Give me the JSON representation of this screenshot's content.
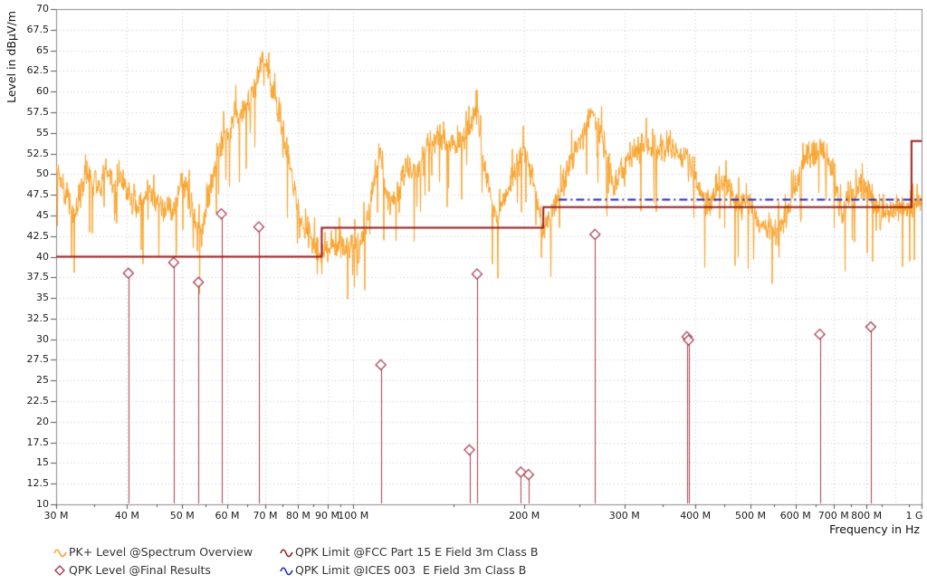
{
  "axis": {
    "y_title": "Level in dBµV/m",
    "x_title": "Frequency in Hz"
  },
  "legend": {
    "items": [
      {
        "label": "PK+ Level @Spectrum Overview",
        "icon": "orange-squiggle",
        "color": "#F9A228"
      },
      {
        "label": "QPK Level @Final Results",
        "icon": "open-diamond",
        "color": "#A03043"
      },
      {
        "label": "QPK Limit @FCC Part 15 E Field 3m Class B",
        "icon": "red-squiggle",
        "color": "#981C1C"
      },
      {
        "label": "QPK Limit @ICES 003  E Field 3m Class B",
        "icon": "blue-squiggle",
        "color": "#2323C0"
      }
    ]
  },
  "chart_data": {
    "type": "line",
    "title": "",
    "xlabel": "Frequency in Hz",
    "ylabel": "Level in dBµV/m",
    "x_scale": "log",
    "x_range_mhz": [
      30,
      1000
    ],
    "ylim": [
      10,
      70
    ],
    "grid": true,
    "legend_position": "bottom",
    "y_ticks": [
      "70",
      "67.5",
      "65",
      "62.5",
      "60",
      "57.5",
      "55",
      "52.5",
      "50",
      "47.5",
      "45",
      "42.5",
      "40",
      "37.5",
      "35",
      "32.5",
      "30",
      "27.5",
      "25",
      "22.5",
      "20",
      "17.5",
      "15",
      "12.5",
      "10"
    ],
    "y_tick_values": [
      70,
      67.5,
      65,
      62.5,
      60,
      57.5,
      55,
      52.5,
      50,
      47.5,
      45,
      42.5,
      40,
      37.5,
      35,
      32.5,
      30,
      27.5,
      25,
      22.5,
      20,
      17.5,
      15,
      12.5,
      10
    ],
    "x_major_ticks": [
      {
        "mhz": 30,
        "label": "30 M"
      },
      {
        "mhz": 40,
        "label": "40 M"
      },
      {
        "mhz": 50,
        "label": "50 M"
      },
      {
        "mhz": 60,
        "label": "60 M"
      },
      {
        "mhz": 70,
        "label": "70 M"
      },
      {
        "mhz": 80,
        "label": "80 M"
      },
      {
        "mhz": 90,
        "label": "90 M"
      },
      {
        "mhz": 100,
        "label": "100 M"
      },
      {
        "mhz": 200,
        "label": "200 M"
      },
      {
        "mhz": 300,
        "label": "300 M"
      },
      {
        "mhz": 400,
        "label": "400 M"
      },
      {
        "mhz": 500,
        "label": "500 M"
      },
      {
        "mhz": 600,
        "label": "600 M"
      },
      {
        "mhz": 700,
        "label": "700 M"
      },
      {
        "mhz": 800,
        "label": "800 M"
      },
      {
        "mhz": 1000,
        "label": "1 G"
      }
    ],
    "x_minor_ticks_mhz": [
      35,
      45,
      55,
      65,
      75,
      85,
      95,
      150,
      250,
      350,
      450,
      550,
      650,
      750,
      850,
      950
    ],
    "grid_vertical_mhz": [
      40,
      50,
      60,
      70,
      80,
      90,
      100,
      200,
      300,
      400,
      500,
      600,
      700,
      800,
      900
    ],
    "series": [
      {
        "name": "PK+ Level @Spectrum Overview",
        "kind": "noisy-spectrum",
        "color": "#F9A228",
        "noise_db": 2.1,
        "envelope_mhz_db": [
          [
            30,
            51.5
          ],
          [
            31,
            48
          ],
          [
            32,
            45
          ],
          [
            33,
            47.5
          ],
          [
            34,
            50
          ],
          [
            35,
            49
          ],
          [
            36,
            48.5
          ],
          [
            37,
            50
          ],
          [
            38,
            48.5
          ],
          [
            39,
            49.5
          ],
          [
            40,
            48
          ],
          [
            41,
            46.5
          ],
          [
            42,
            46
          ],
          [
            43,
            47.5
          ],
          [
            44,
            48
          ],
          [
            45,
            47
          ],
          [
            46,
            45.5
          ],
          [
            47,
            46.5
          ],
          [
            48,
            45
          ],
          [
            49,
            47
          ],
          [
            50,
            49
          ],
          [
            51,
            48
          ],
          [
            52,
            46
          ],
          [
            53,
            44
          ],
          [
            54,
            42.5
          ],
          [
            55,
            45
          ],
          [
            56,
            48
          ],
          [
            57,
            51
          ],
          [
            58,
            53
          ],
          [
            59,
            54
          ],
          [
            60,
            55
          ],
          [
            61,
            56.5
          ],
          [
            62,
            57.5
          ],
          [
            63,
            56.5
          ],
          [
            64,
            57.5
          ],
          [
            65,
            58.5
          ],
          [
            66,
            59
          ],
          [
            67,
            60
          ],
          [
            68,
            61.5
          ],
          [
            69,
            64
          ],
          [
            70,
            63.5
          ],
          [
            71,
            61.5
          ],
          [
            72,
            60.5
          ],
          [
            73,
            59
          ],
          [
            74,
            57.5
          ],
          [
            75,
            55.5
          ],
          [
            76,
            53.5
          ],
          [
            77,
            51.5
          ],
          [
            78,
            49.5
          ],
          [
            79,
            47.5
          ],
          [
            80,
            46
          ],
          [
            81,
            44.5
          ],
          [
            82,
            43.5
          ],
          [
            83,
            42.5
          ],
          [
            84,
            42
          ],
          [
            85,
            41.5
          ],
          [
            86,
            41
          ],
          [
            88,
            40.5
          ],
          [
            90,
            41
          ],
          [
            92,
            41.5
          ],
          [
            94,
            42
          ],
          [
            96,
            41.5
          ],
          [
            98,
            41
          ],
          [
            100,
            41.5
          ],
          [
            102,
            41
          ],
          [
            104,
            43
          ],
          [
            106,
            44.5
          ],
          [
            108,
            47
          ],
          [
            110,
            51
          ],
          [
            111,
            52.5
          ],
          [
            112,
            52
          ],
          [
            113,
            50
          ],
          [
            114,
            48
          ],
          [
            116,
            46.5
          ],
          [
            118,
            47
          ],
          [
            120,
            48
          ],
          [
            122,
            49.5
          ],
          [
            124,
            51
          ],
          [
            126,
            50
          ],
          [
            128,
            49.5
          ],
          [
            130,
            50.5
          ],
          [
            132,
            52
          ],
          [
            134,
            53
          ],
          [
            136,
            53.5
          ],
          [
            138,
            53
          ],
          [
            140,
            54
          ],
          [
            142,
            54.5
          ],
          [
            144,
            55
          ],
          [
            146,
            54
          ],
          [
            148,
            53.5
          ],
          [
            150,
            54
          ],
          [
            152,
            53.5
          ],
          [
            154,
            54
          ],
          [
            156,
            54.5
          ],
          [
            158,
            55
          ],
          [
            160,
            55.5
          ],
          [
            162,
            56
          ],
          [
            164,
            58.5
          ],
          [
            165,
            60
          ],
          [
            166,
            57
          ],
          [
            167,
            55
          ],
          [
            168,
            53
          ],
          [
            170,
            51
          ],
          [
            172,
            49
          ],
          [
            174,
            47.5
          ],
          [
            176,
            46
          ],
          [
            178,
            45
          ],
          [
            180,
            44.5
          ],
          [
            182,
            45.5
          ],
          [
            184,
            46.5
          ],
          [
            186,
            47.5
          ],
          [
            188,
            48.5
          ],
          [
            190,
            49.5
          ],
          [
            193,
            50.5
          ],
          [
            196,
            51.5
          ],
          [
            199,
            52.5
          ],
          [
            202,
            52
          ],
          [
            205,
            50.5
          ],
          [
            208,
            48.5
          ],
          [
            211,
            46.5
          ],
          [
            214,
            44.5
          ],
          [
            217,
            43.5
          ],
          [
            220,
            44
          ],
          [
            224,
            45.5
          ],
          [
            228,
            46.5
          ],
          [
            232,
            48
          ],
          [
            236,
            49.5
          ],
          [
            240,
            51
          ],
          [
            245,
            52.5
          ],
          [
            250,
            54
          ],
          [
            255,
            55
          ],
          [
            260,
            56.5
          ],
          [
            265,
            57
          ],
          [
            270,
            56
          ],
          [
            275,
            54
          ],
          [
            280,
            51.5
          ],
          [
            285,
            49.5
          ],
          [
            288,
            48.5
          ],
          [
            292,
            49
          ],
          [
            296,
            50
          ],
          [
            300,
            51
          ],
          [
            305,
            52
          ],
          [
            310,
            52.5
          ],
          [
            315,
            53
          ],
          [
            320,
            53
          ],
          [
            325,
            53.5
          ],
          [
            330,
            53.5
          ],
          [
            335,
            53
          ],
          [
            340,
            53.5
          ],
          [
            345,
            53
          ],
          [
            350,
            53
          ],
          [
            355,
            53.5
          ],
          [
            360,
            53.5
          ],
          [
            365,
            53
          ],
          [
            370,
            52.5
          ],
          [
            375,
            52
          ],
          [
            380,
            52
          ],
          [
            385,
            52.5
          ],
          [
            390,
            52
          ],
          [
            395,
            50.5
          ],
          [
            400,
            49
          ],
          [
            405,
            48
          ],
          [
            410,
            47
          ],
          [
            415,
            46.5
          ],
          [
            420,
            46.5
          ],
          [
            425,
            47
          ],
          [
            430,
            47.5
          ],
          [
            435,
            48.5
          ],
          [
            440,
            49
          ],
          [
            445,
            49.5
          ],
          [
            450,
            49
          ],
          [
            455,
            48
          ],
          [
            460,
            47.5
          ],
          [
            465,
            47
          ],
          [
            470,
            46.5
          ],
          [
            475,
            46
          ],
          [
            480,
            46
          ],
          [
            490,
            46
          ],
          [
            500,
            46
          ],
          [
            510,
            45
          ],
          [
            520,
            44
          ],
          [
            530,
            43.5
          ],
          [
            540,
            43.5
          ],
          [
            550,
            43
          ],
          [
            560,
            43
          ],
          [
            570,
            44
          ],
          [
            580,
            45.5
          ],
          [
            590,
            47
          ],
          [
            600,
            49
          ],
          [
            610,
            50.5
          ],
          [
            620,
            51.5
          ],
          [
            630,
            52
          ],
          [
            640,
            52.5
          ],
          [
            650,
            52.5
          ],
          [
            660,
            53
          ],
          [
            670,
            52.5
          ],
          [
            680,
            52
          ],
          [
            690,
            51
          ],
          [
            700,
            49.5
          ],
          [
            710,
            47
          ],
          [
            720,
            45.5
          ],
          [
            730,
            45.5
          ],
          [
            740,
            46.5
          ],
          [
            750,
            47.5
          ],
          [
            760,
            48
          ],
          [
            770,
            48.5
          ],
          [
            780,
            48.5
          ],
          [
            790,
            48
          ],
          [
            800,
            48
          ],
          [
            810,
            48.5
          ],
          [
            820,
            47
          ],
          [
            830,
            46
          ],
          [
            840,
            45.5
          ],
          [
            850,
            45
          ],
          [
            860,
            45
          ],
          [
            870,
            45.5
          ],
          [
            880,
            45
          ],
          [
            900,
            45.5
          ],
          [
            920,
            46
          ],
          [
            940,
            46.5
          ],
          [
            960,
            46.5
          ],
          [
            980,
            46.5
          ],
          [
            1000,
            47
          ]
        ]
      },
      {
        "name": "QPK Level @Final Results",
        "kind": "stem-diamond",
        "color": "#A03043",
        "points_mhz_db": [
          [
            40.2,
            38.0
          ],
          [
            48.3,
            39.3
          ],
          [
            53.4,
            36.9
          ],
          [
            58.6,
            45.2
          ],
          [
            68.2,
            43.6
          ],
          [
            111.8,
            26.9
          ],
          [
            160.1,
            16.6
          ],
          [
            165.1,
            37.9
          ],
          [
            197.2,
            13.9
          ],
          [
            203.4,
            13.6
          ],
          [
            266.3,
            42.7
          ],
          [
            386.5,
            30.3
          ],
          [
            389.0,
            29.9
          ],
          [
            662.0,
            30.6
          ],
          [
            814.0,
            31.5
          ]
        ]
      },
      {
        "name": "QPK Limit @FCC Part 15 E Field 3m Class B",
        "kind": "step-line",
        "color": "#981C1C",
        "segments_mhz_db": [
          [
            30,
            88,
            40
          ],
          [
            88,
            216,
            43.5
          ],
          [
            216,
            960,
            46
          ],
          [
            960,
            1000,
            54
          ]
        ]
      },
      {
        "name": "QPK Limit @ICES 003  E Field 3m Class B",
        "kind": "dash-dot-line",
        "color": "#2323C0",
        "segments_mhz_db": [
          [
            230,
            1000,
            47
          ]
        ]
      }
    ],
    "colors": {
      "grid": "#c9c9c9",
      "frame": "#8a8a8a",
      "tick": "#555555",
      "text": "#1c1c1c"
    }
  }
}
